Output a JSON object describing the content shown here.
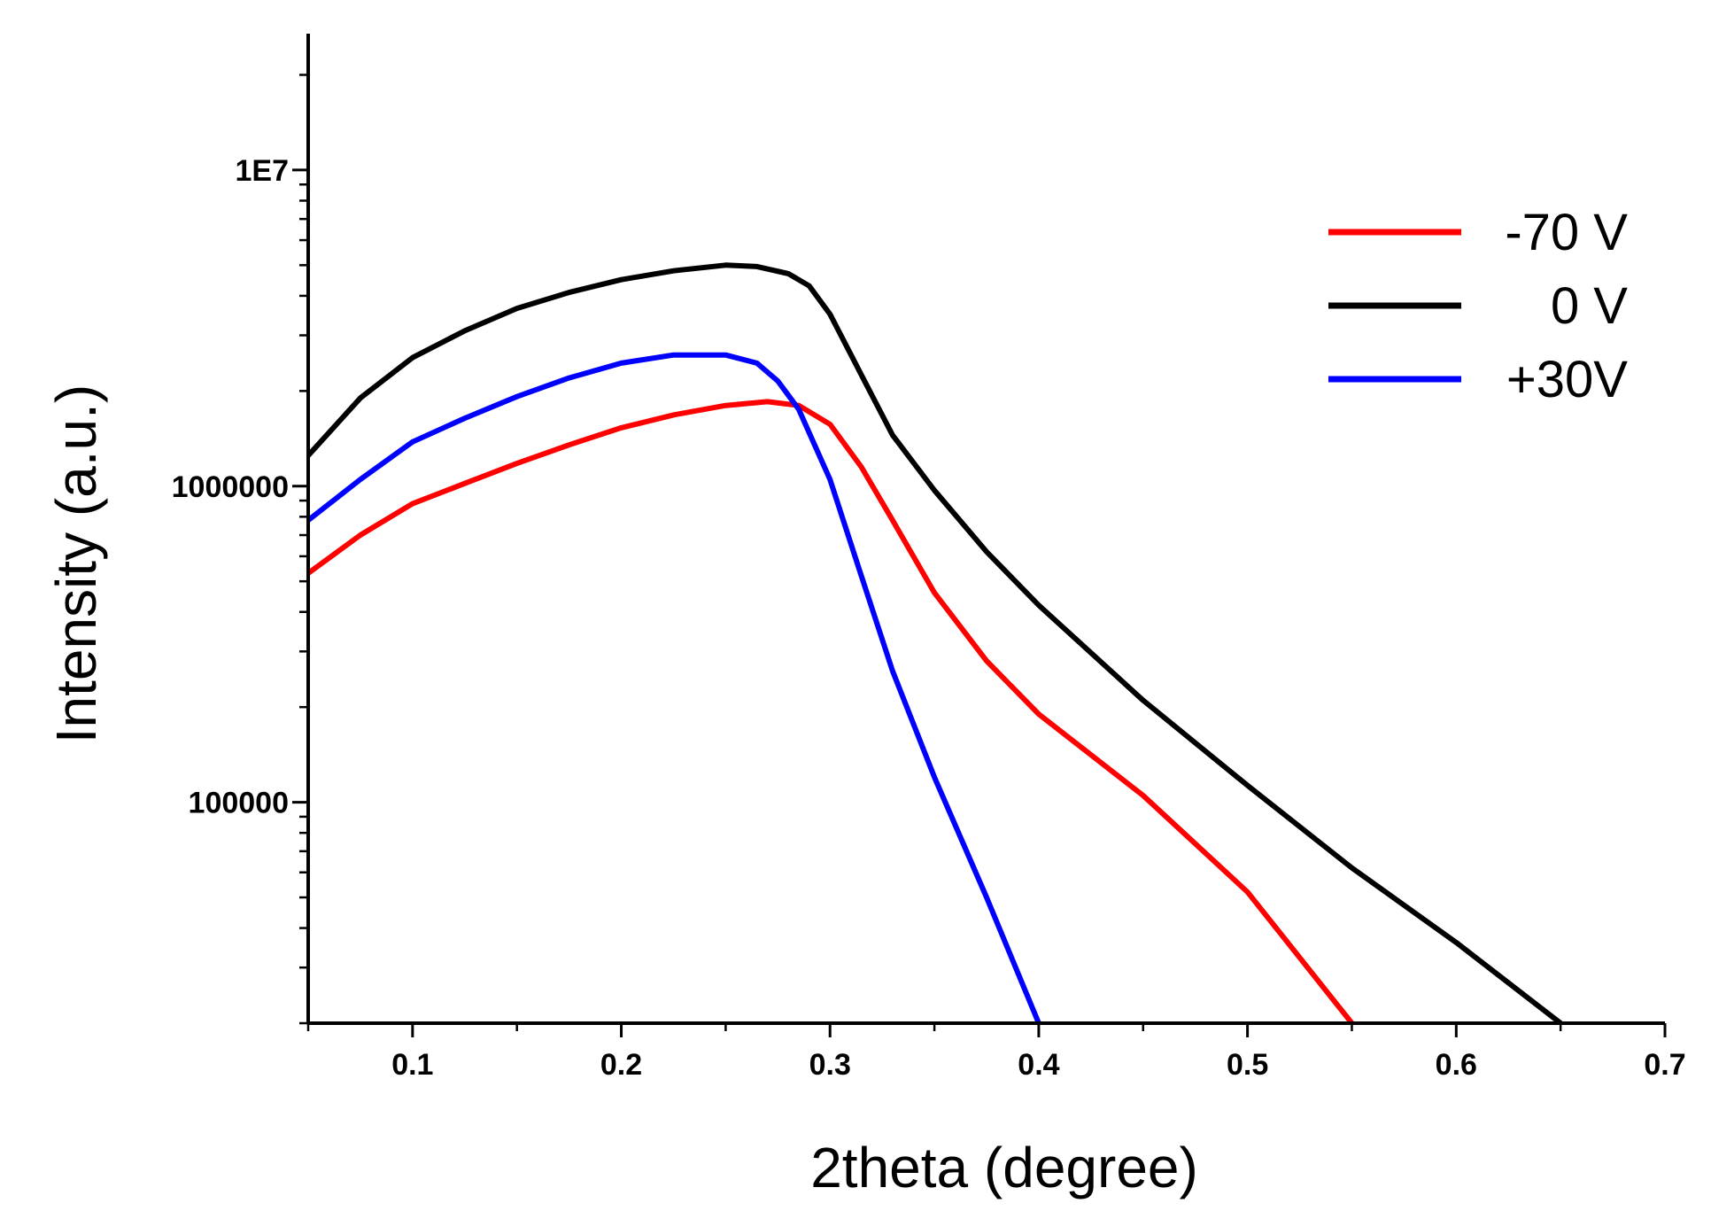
{
  "chart_data": {
    "type": "line",
    "title": "",
    "xlabel": "2theta (degree)",
    "ylabel": "Intensity (a.u.)",
    "xscale": "linear",
    "yscale": "log",
    "xlim": [
      0.05,
      0.7
    ],
    "ylim": [
      20000,
      27000000
    ],
    "grid": false,
    "legend_position": "top-right",
    "x_ticks": [
      0.1,
      0.2,
      0.3,
      0.4,
      0.5,
      0.6,
      0.7
    ],
    "x_tick_labels": [
      "0.1",
      "0.2",
      "0.3",
      "0.4",
      "0.5",
      "0.6",
      "0.7"
    ],
    "y_ticks": [
      100000,
      1000000,
      10000000
    ],
    "y_tick_labels": [
      "100000",
      "1000000",
      "1E7"
    ],
    "series": [
      {
        "name": "-70 V",
        "color": "#ff0000",
        "x": [
          0.05,
          0.075,
          0.1,
          0.125,
          0.15,
          0.175,
          0.2,
          0.225,
          0.25,
          0.27,
          0.285,
          0.3,
          0.315,
          0.33,
          0.35,
          0.375,
          0.4,
          0.45,
          0.5,
          0.55
        ],
        "y": [
          530000,
          700000,
          880000,
          1020000,
          1180000,
          1350000,
          1530000,
          1680000,
          1800000,
          1850000,
          1800000,
          1570000,
          1150000,
          780000,
          460000,
          280000,
          190000,
          105000,
          52000,
          20000
        ]
      },
      {
        "name": "0 V",
        "color": "#000000",
        "x": [
          0.05,
          0.075,
          0.1,
          0.125,
          0.15,
          0.175,
          0.2,
          0.225,
          0.25,
          0.265,
          0.28,
          0.29,
          0.3,
          0.315,
          0.33,
          0.35,
          0.375,
          0.4,
          0.45,
          0.5,
          0.55,
          0.6,
          0.65
        ],
        "y": [
          1250000,
          1900000,
          2550000,
          3100000,
          3650000,
          4100000,
          4500000,
          4800000,
          5000000,
          4950000,
          4700000,
          4300000,
          3500000,
          2250000,
          1450000,
          970000,
          620000,
          420000,
          210000,
          113000,
          62000,
          36000,
          20000
        ]
      },
      {
        "name": "+30V",
        "color": "#0000ff",
        "x": [
          0.05,
          0.075,
          0.1,
          0.125,
          0.15,
          0.175,
          0.2,
          0.225,
          0.25,
          0.265,
          0.275,
          0.285,
          0.3,
          0.315,
          0.33,
          0.35,
          0.375,
          0.4
        ],
        "y": [
          780000,
          1050000,
          1380000,
          1640000,
          1920000,
          2200000,
          2450000,
          2600000,
          2600000,
          2450000,
          2150000,
          1750000,
          1050000,
          520000,
          260000,
          120000,
          50000,
          20000
        ]
      }
    ]
  }
}
